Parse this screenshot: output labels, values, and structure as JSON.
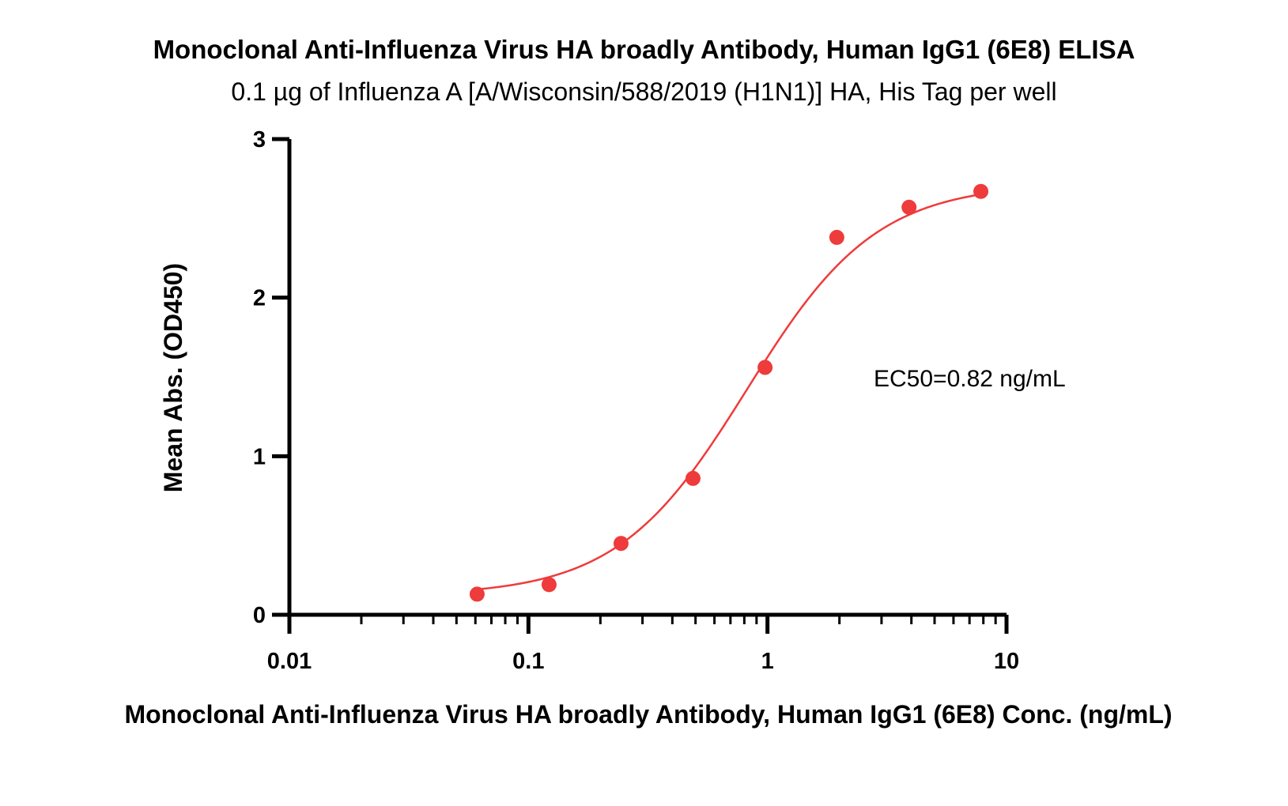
{
  "chart_data": {
    "type": "scatter",
    "title": "Monoclonal Anti-Influenza Virus HA broadly Antibody, Human IgG1 (6E8) ELISA",
    "subtitle": "0.1 µg of Influenza A [A/Wisconsin/588/2019 (H1N1)] HA, His Tag per well",
    "xlabel": "Monoclonal Anti-Influenza Virus HA broadly Antibody, Human IgG1 (6E8) Conc. (ng/mL)",
    "ylabel": "Mean Abs. (OD450)",
    "x_scale": "log",
    "xlim": [
      0.01,
      10
    ],
    "ylim": [
      0,
      3
    ],
    "x_ticks": [
      "0.01",
      "0.1",
      "1",
      "10"
    ],
    "y_ticks": [
      "0",
      "1",
      "2",
      "3"
    ],
    "grid": false,
    "series": [
      {
        "points": [
          {
            "x": 0.061,
            "y": 0.13
          },
          {
            "x": 0.122,
            "y": 0.19
          },
          {
            "x": 0.244,
            "y": 0.45
          },
          {
            "x": 0.488,
            "y": 0.86
          },
          {
            "x": 0.977,
            "y": 1.56
          },
          {
            "x": 1.95,
            "y": 2.38
          },
          {
            "x": 3.91,
            "y": 2.57
          },
          {
            "x": 7.81,
            "y": 2.67
          }
        ],
        "fit": {
          "model": "4PL",
          "bottom": 0.12,
          "top": 2.72,
          "ec50": 0.82,
          "hill": 1.6,
          "x_range": [
            0.061,
            7.81
          ]
        }
      }
    ],
    "annotations": [
      "EC50=0.82 ng/mL"
    ],
    "colors": {
      "series": "#ee3b3b",
      "axis": "#000000"
    }
  }
}
